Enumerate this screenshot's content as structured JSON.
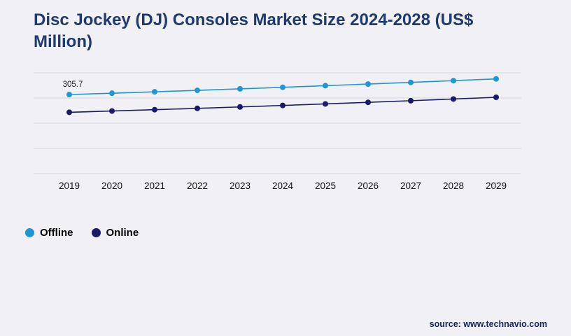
{
  "header": {
    "title": "Disc Jockey (DJ) Consoles Market Size 2024-2028 (US$ Million)"
  },
  "source": "source: www.technavio.com",
  "chart_data": {
    "type": "line",
    "title": "Disc Jockey (DJ) Consoles Market Size 2024-2028 (US$ Million)",
    "categories": [
      "2019",
      "2020",
      "2021",
      "2022",
      "2023",
      "2024",
      "2025",
      "2026",
      "2027",
      "2028",
      "2029"
    ],
    "series": [
      {
        "name": "Offline",
        "color": "#1f97d4",
        "values": [
          305.7,
          311.0,
          316.5,
          322.1,
          327.9,
          333.9,
          340.1,
          346.4,
          352.9,
          359.6,
          366.4
        ]
      },
      {
        "name": "Online",
        "color": "#1a1a6b",
        "values": [
          237.2,
          242.1,
          247.2,
          252.5,
          258.0,
          263.7,
          269.6,
          275.7,
          282.0,
          288.5,
          295.2
        ]
      }
    ],
    "ylim": [
      0,
      390
    ],
    "grid": true,
    "legend_position": "bottom-left",
    "annotations": [
      {
        "text": "305.7",
        "series": "Offline",
        "category": "2019"
      }
    ],
    "colors": {
      "grid_line": "#d9d9d9",
      "axis_text": "#111111",
      "title_text": "#1e3a6e",
      "background": "#f1f0f4"
    }
  }
}
